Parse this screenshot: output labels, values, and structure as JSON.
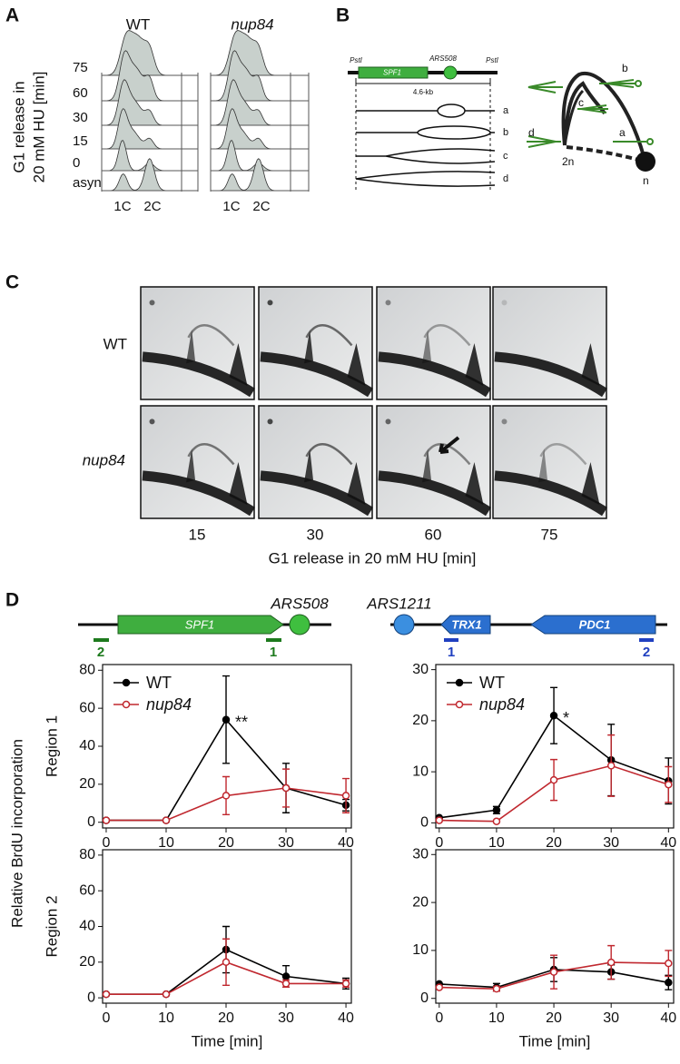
{
  "panel_a": {
    "label": "A",
    "columns": [
      "WT",
      "nup84"
    ],
    "y_title": [
      "G1 release in",
      "20 mM HU [min]"
    ],
    "rows": [
      "75",
      "60",
      "30",
      "15",
      "0",
      "asyn"
    ],
    "x_labels": [
      "1C",
      "2C"
    ]
  },
  "panel_b": {
    "label": "B",
    "site": "PstI",
    "gene": "SPF1",
    "origin": "ARS508",
    "size": "4.6-kb",
    "intermediates": [
      "a",
      "b",
      "c",
      "d"
    ],
    "scheme_labels": [
      "b",
      "c",
      "a",
      "d",
      "2n",
      "n"
    ]
  },
  "panel_c": {
    "label": "C",
    "rows": [
      "WT",
      "nup84"
    ],
    "times": [
      "15",
      "30",
      "60",
      "75"
    ],
    "x_title": "G1 release in 20 mM HU [min]"
  },
  "panel_d": {
    "label": "D",
    "left_map": {
      "gene": "SPF1",
      "origin": "ARS508",
      "primers": [
        "2",
        "1"
      ]
    },
    "right_map": {
      "origin": "ARS1211",
      "genes": [
        "TRX1",
        "PDC1"
      ],
      "primers": [
        "1",
        "2"
      ]
    },
    "y_title": "Relative BrdU incorporation"
  },
  "chart_data": [
    {
      "type": "line",
      "ylabel": "Region 1",
      "x": [
        0,
        10,
        20,
        30,
        40
      ],
      "xlim": [
        -0.6,
        40.9
      ],
      "xticks": [
        0,
        10,
        20,
        30,
        40
      ],
      "ylim": [
        -3,
        83
      ],
      "yticks": [
        0,
        20,
        40,
        60,
        80
      ],
      "legend": true,
      "annotation": "**",
      "series": [
        {
          "name": "WT",
          "color": "#000000",
          "marker": "filled",
          "values": [
            1,
            1,
            54,
            18,
            9
          ],
          "errors": [
            0,
            0,
            23,
            13,
            3
          ]
        },
        {
          "name": "nup84",
          "color": "#c0282f",
          "marker": "open",
          "values": [
            1,
            1,
            14,
            18,
            14
          ],
          "errors": [
            0,
            0,
            10,
            10,
            9
          ]
        }
      ]
    },
    {
      "type": "line",
      "x": [
        0,
        10,
        20,
        30,
        40
      ],
      "xlim": [
        -0.6,
        40.9
      ],
      "xticks": [
        0,
        10,
        20,
        30,
        40
      ],
      "ylim": [
        -1,
        31
      ],
      "yticks": [
        0,
        10,
        20,
        30
      ],
      "legend": true,
      "annotation": "*",
      "series": [
        {
          "name": "WT",
          "color": "#000000",
          "marker": "filled",
          "values": [
            1,
            2.5,
            21,
            12.3,
            8.2
          ],
          "errors": [
            0,
            0.7,
            5.5,
            7,
            4.5
          ]
        },
        {
          "name": "nup84",
          "color": "#c0282f",
          "marker": "open",
          "values": [
            0.5,
            0.3,
            8.4,
            11.2,
            7.5
          ],
          "errors": [
            0,
            0,
            4,
            6,
            3.5
          ]
        }
      ]
    },
    {
      "type": "line",
      "ylabel": "Region 2",
      "xlabel": "Time [min]",
      "x": [
        0,
        10,
        20,
        30,
        40
      ],
      "xlim": [
        -0.6,
        40.9
      ],
      "xticks": [
        0,
        10,
        20,
        30,
        40
      ],
      "ylim": [
        -3,
        83
      ],
      "yticks": [
        0,
        20,
        40,
        60,
        80
      ],
      "legend": false,
      "series": [
        {
          "color": "#000000",
          "marker": "filled",
          "values": [
            2,
            2,
            27,
            12,
            8
          ],
          "errors": [
            0,
            0,
            13,
            6,
            3
          ]
        },
        {
          "color": "#c0282f",
          "marker": "open",
          "values": [
            2,
            2,
            20,
            8,
            8
          ],
          "errors": [
            0,
            0,
            13,
            2,
            2
          ]
        }
      ]
    },
    {
      "type": "line",
      "xlabel": "Time [min]",
      "x": [
        0,
        10,
        20,
        30,
        40
      ],
      "xlim": [
        -0.6,
        40.9
      ],
      "xticks": [
        0,
        10,
        20,
        30,
        40
      ],
      "ylim": [
        -1,
        31
      ],
      "yticks": [
        0,
        10,
        20,
        30
      ],
      "legend": false,
      "series": [
        {
          "color": "#000000",
          "marker": "filled",
          "values": [
            3,
            2.3,
            6,
            5.5,
            3.3
          ],
          "errors": [
            0,
            0.8,
            2.5,
            1.5,
            1.5
          ]
        },
        {
          "color": "#c0282f",
          "marker": "open",
          "values": [
            2.3,
            2,
            5.5,
            7.5,
            7.3
          ],
          "errors": [
            0,
            0.5,
            3.5,
            3.5,
            2.7
          ]
        }
      ]
    }
  ]
}
